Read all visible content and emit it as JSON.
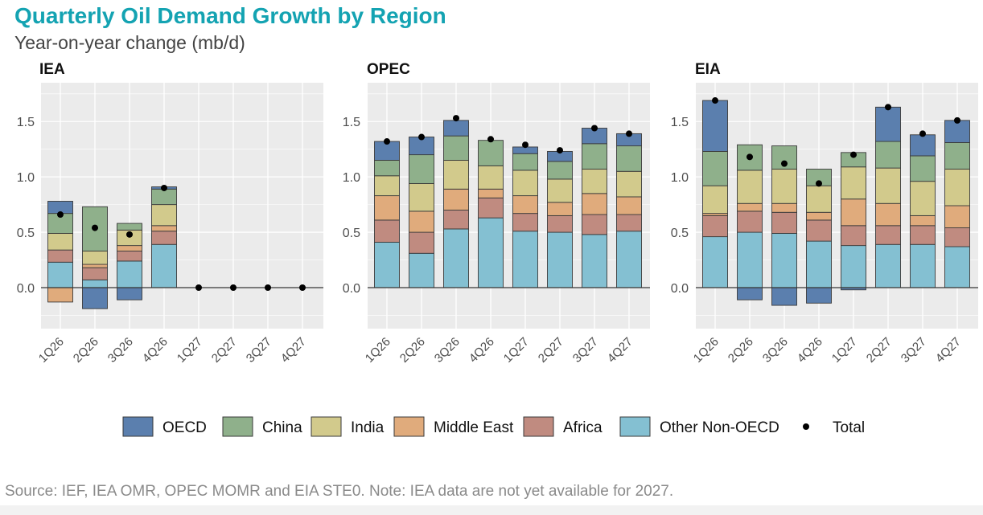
{
  "title": "Quarterly Oil Demand Growth by Region",
  "subtitle": "Year-on-year change (mb/d)",
  "footer": "Source: IEF, IEA OMR, OPEC MOMR and EIA STE0. Note: IEA data are not yet available for 2027.",
  "legend": [
    {
      "name": "OECD",
      "color": "#5b7fae"
    },
    {
      "name": "China",
      "color": "#8fb08b"
    },
    {
      "name": "India",
      "color": "#d2ca8c"
    },
    {
      "name": "Middle East",
      "color": "#e0ab7c"
    },
    {
      "name": "Africa",
      "color": "#c08b80"
    },
    {
      "name": "Other Non-OECD",
      "color": "#84c0d2"
    },
    {
      "name": "Total",
      "color": "#000000",
      "marker": "dot"
    }
  ],
  "chart_data": [
    {
      "type": "bar",
      "stacked": true,
      "title": "IEA",
      "categories": [
        "1Q26",
        "2Q26",
        "3Q26",
        "4Q26",
        "1Q27",
        "2Q27",
        "3Q27",
        "4Q27"
      ],
      "ylim": [
        -0.37,
        1.85
      ],
      "yticks": [
        "0.0",
        "0.5",
        "1.0",
        "1.5"
      ],
      "grid": true,
      "series": [
        {
          "name": "Other Non-OECD",
          "values": [
            0.23,
            0.07,
            0.24,
            0.39,
            0,
            0,
            0,
            0
          ]
        },
        {
          "name": "Africa",
          "values": [
            0.11,
            0.11,
            0.09,
            0.12,
            0,
            0,
            0,
            0
          ]
        },
        {
          "name": "Middle East",
          "values": [
            -0.13,
            0.03,
            0.05,
            0.05,
            0,
            0,
            0,
            0
          ]
        },
        {
          "name": "India",
          "values": [
            0.15,
            0.12,
            0.14,
            0.19,
            0,
            0,
            0,
            0
          ]
        },
        {
          "name": "China",
          "values": [
            0.18,
            0.4,
            0.06,
            0.14,
            0,
            0,
            0,
            0
          ]
        },
        {
          "name": "OECD",
          "values": [
            0.11,
            -0.19,
            -0.11,
            0.02,
            0,
            0,
            0,
            0
          ]
        }
      ],
      "total": [
        0.66,
        0.54,
        0.48,
        0.9,
        0,
        0,
        0,
        0
      ]
    },
    {
      "type": "bar",
      "stacked": true,
      "title": "OPEC",
      "categories": [
        "1Q26",
        "2Q26",
        "3Q26",
        "4Q26",
        "1Q27",
        "2Q27",
        "3Q27",
        "4Q27"
      ],
      "ylim": [
        -0.37,
        1.85
      ],
      "yticks": [
        "0.0",
        "0.5",
        "1.0",
        "1.5"
      ],
      "grid": true,
      "series": [
        {
          "name": "Other Non-OECD",
          "values": [
            0.41,
            0.31,
            0.53,
            0.63,
            0.51,
            0.5,
            0.48,
            0.51
          ]
        },
        {
          "name": "Africa",
          "values": [
            0.2,
            0.19,
            0.17,
            0.18,
            0.16,
            0.15,
            0.18,
            0.15
          ]
        },
        {
          "name": "Middle East",
          "values": [
            0.22,
            0.19,
            0.19,
            0.08,
            0.16,
            0.12,
            0.19,
            0.16
          ]
        },
        {
          "name": "India",
          "values": [
            0.18,
            0.25,
            0.26,
            0.21,
            0.23,
            0.21,
            0.22,
            0.23
          ]
        },
        {
          "name": "China",
          "values": [
            0.14,
            0.26,
            0.22,
            0.23,
            0.15,
            0.16,
            0.23,
            0.23
          ]
        },
        {
          "name": "OECD",
          "values": [
            0.17,
            0.16,
            0.14,
            0,
            0.06,
            0.09,
            0.14,
            0.11
          ]
        }
      ],
      "total": [
        1.32,
        1.36,
        1.53,
        1.34,
        1.29,
        1.24,
        1.44,
        1.39
      ]
    },
    {
      "type": "bar",
      "stacked": true,
      "title": "EIA",
      "categories": [
        "1Q26",
        "2Q26",
        "3Q26",
        "4Q26",
        "1Q27",
        "2Q27",
        "3Q27",
        "4Q27"
      ],
      "ylim": [
        -0.37,
        1.85
      ],
      "yticks": [
        "0.0",
        "0.5",
        "1.0",
        "1.5"
      ],
      "grid": true,
      "series": [
        {
          "name": "Other Non-OECD",
          "values": [
            0.46,
            0.5,
            0.49,
            0.42,
            0.38,
            0.39,
            0.39,
            0.37
          ]
        },
        {
          "name": "Africa",
          "values": [
            0.19,
            0.19,
            0.19,
            0.19,
            0.18,
            0.17,
            0.17,
            0.17
          ]
        },
        {
          "name": "Middle East",
          "values": [
            0.02,
            0.07,
            0.08,
            0.07,
            0.24,
            0.2,
            0.09,
            0.2
          ]
        },
        {
          "name": "India",
          "values": [
            0.25,
            0.3,
            0.31,
            0.24,
            0.29,
            0.32,
            0.31,
            0.33
          ]
        },
        {
          "name": "China",
          "values": [
            0.31,
            0.23,
            0.21,
            0.15,
            0.13,
            0.24,
            0.23,
            0.24
          ]
        },
        {
          "name": "OECD",
          "values": [
            0.46,
            -0.11,
            -0.16,
            -0.14,
            -0.02,
            0.31,
            0.19,
            0.2
          ]
        }
      ],
      "total": [
        1.69,
        1.18,
        1.12,
        0.94,
        1.2,
        1.63,
        1.39,
        1.51
      ]
    }
  ]
}
